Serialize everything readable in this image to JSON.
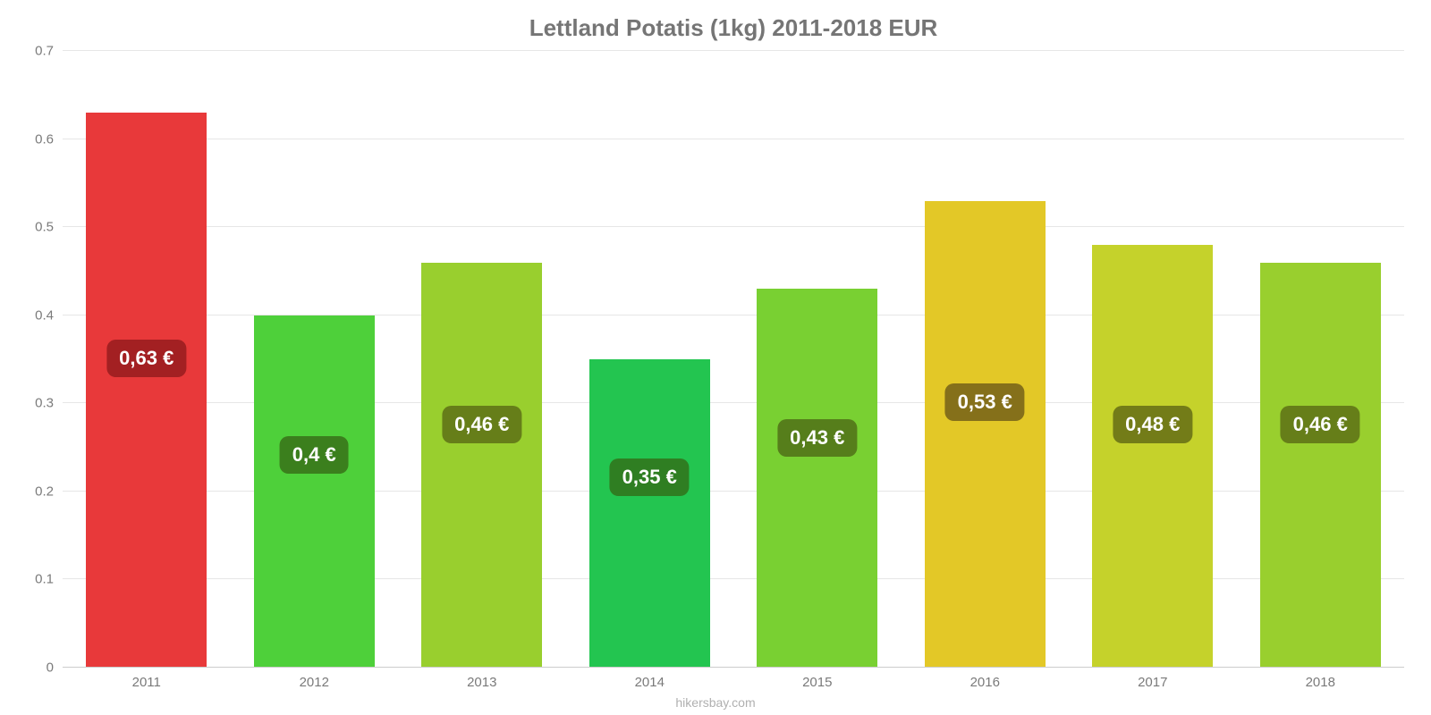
{
  "chart": {
    "type": "bar",
    "title": "Lettland Potatis (1kg) 2011-2018 EUR",
    "title_color": "#757575",
    "title_fontsize": 26,
    "background_color": "#ffffff",
    "grid_color": "#e6e6e6",
    "axis_color": "#cccccc",
    "label_color": "#7a7a7a",
    "ylim": [
      0,
      0.7
    ],
    "ytick_step": 0.1,
    "yticks": [
      "0",
      "0.1",
      "0.2",
      "0.3",
      "0.4",
      "0.5",
      "0.6",
      "0.7"
    ],
    "categories": [
      "2011",
      "2012",
      "2013",
      "2014",
      "2015",
      "2016",
      "2017",
      "2018"
    ],
    "values": [
      0.63,
      0.4,
      0.46,
      0.35,
      0.43,
      0.53,
      0.48,
      0.46
    ],
    "value_labels": [
      "0,63 €",
      "0,4 €",
      "0,46 €",
      "0,35 €",
      "0,43 €",
      "0,53 €",
      "0,48 €",
      "0,46 €"
    ],
    "bar_colors": [
      "#e8393a",
      "#4ed03a",
      "#99cf2e",
      "#23c550",
      "#79d032",
      "#e3c827",
      "#c5d22b",
      "#99cf2e"
    ],
    "badge_bg_colors": [
      "#a32022",
      "#3b7f1d",
      "#667e19",
      "#2f7e22",
      "#567e1b",
      "#85701a",
      "#737c18",
      "#667e19"
    ],
    "badge_text_colors": [
      "#ffffff",
      "#ffffff",
      "#ffffff",
      "#ffffff",
      "#ffffff",
      "#ffffff",
      "#ffffff",
      "#ffffff"
    ],
    "bar_width_pct": 72,
    "label_fontsize": 22,
    "tick_fontsize": 15,
    "source_text": "hikersbay.com",
    "source_color": "#b0b0b0"
  }
}
